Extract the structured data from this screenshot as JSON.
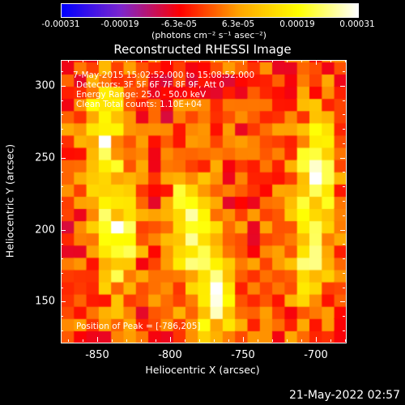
{
  "colorbar": {
    "ticks": [
      "-0.00031",
      "-0.00019",
      "-6.3e-05",
      "6.3e-05",
      "0.00019",
      "0.00031"
    ],
    "units": "(photons cm⁻² s⁻¹ asec⁻²)"
  },
  "title": "Reconstructed RHESSI Image",
  "annotations": {
    "time": "7-May-2015 15:02:52.000 to 15:08:52.000",
    "detectors": "Detectors: 3F 5F 6F 7F 8F 9F, Att 0",
    "energy": "Energy Range: 25.0 - 50.0 keV",
    "clean": "Clean    Total counts: 1.10E+04",
    "peak": "Position of Peak = [-786,205]"
  },
  "footer": "21-May-2022 02:57",
  "chart_data": {
    "type": "heatmap",
    "title": "Reconstructed RHESSI Image",
    "xlabel": "Heliocentric X (arcsec)",
    "ylabel": "Heliocentric Y (arcsec)",
    "xlim": [
      -875,
      -680
    ],
    "ylim": [
      122,
      318
    ],
    "xticks": [
      -850,
      -800,
      -750,
      -700
    ],
    "yticks": [
      150,
      200,
      250,
      300
    ],
    "clim": [
      -0.00031,
      0.00031
    ],
    "colormap": [
      "#0000ff",
      "#7d26cd",
      "#ff0000",
      "#ffa500",
      "#ffff00",
      "#ffffff"
    ],
    "sources": [
      {
        "x": -845,
        "y": 265,
        "peak": 0.00028
      },
      {
        "x": -838,
        "y": 195,
        "peak": 0.0003
      },
      {
        "x": -786,
        "y": 205,
        "peak": 0.00031
      },
      {
        "x": -770,
        "y": 155,
        "peak": 0.00024
      },
      {
        "x": -700,
        "y": 245,
        "peak": 0.00028
      },
      {
        "x": -705,
        "y": 180,
        "peak": 0.00022
      }
    ]
  }
}
